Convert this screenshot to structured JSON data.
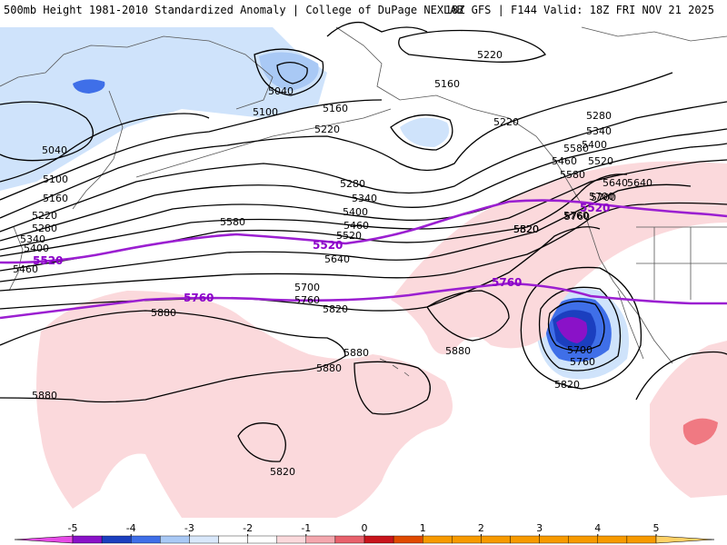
{
  "header": {
    "title_left": "500mb Height 1981-2010 Standardized Anomaly | College of DuPage NEXLAB",
    "title_right": "18Z GFS | F144 Valid: 18Z FRI NOV 21 2025"
  },
  "map": {
    "contour_labels": [
      {
        "text": "5220"
      },
      {
        "text": "5160"
      },
      {
        "text": "5220"
      },
      {
        "text": "5040"
      },
      {
        "text": "5100"
      },
      {
        "text": "5160"
      },
      {
        "text": "5220"
      },
      {
        "text": "5280"
      },
      {
        "text": "5340"
      },
      {
        "text": "5400"
      },
      {
        "text": "5460"
      },
      {
        "text": "5520"
      },
      {
        "text": "5580"
      },
      {
        "text": "5640"
      },
      {
        "text": "5700"
      },
      {
        "text": "5760"
      },
      {
        "text": "5820"
      },
      {
        "text": "5880"
      },
      {
        "text": "5040"
      },
      {
        "text": "5100"
      },
      {
        "text": "5160"
      },
      {
        "text": "5220"
      },
      {
        "text": "5280"
      },
      {
        "text": "5340"
      },
      {
        "text": "5400"
      },
      {
        "text": "5460"
      },
      {
        "text": "5520"
      },
      {
        "text": "5580"
      },
      {
        "text": "5640"
      },
      {
        "text": "5700"
      },
      {
        "text": "5760"
      },
      {
        "text": "5820"
      },
      {
        "text": "5880"
      },
      {
        "text": "5880"
      },
      {
        "text": "5880"
      },
      {
        "text": "5880"
      },
      {
        "text": "5820"
      },
      {
        "text": "5700"
      },
      {
        "text": "5760"
      },
      {
        "text": "5820"
      },
      {
        "text": "5280"
      },
      {
        "text": "5340"
      },
      {
        "text": "5400"
      },
      {
        "text": "5460"
      },
      {
        "text": "5520"
      },
      {
        "text": "5580"
      },
      {
        "text": "5640"
      },
      {
        "text": "5700"
      },
      {
        "text": "5760"
      },
      {
        "text": "5820"
      }
    ],
    "key_contours": [
      {
        "text": "5520"
      },
      {
        "text": "5520"
      },
      {
        "text": "5520"
      },
      {
        "text": "5760"
      },
      {
        "text": "5760"
      }
    ],
    "key_colors": {
      "c5520": "#9b1fd1",
      "c5760": "#9b1fd1"
    }
  },
  "legend": {
    "ticks": [
      "-5",
      "-4",
      "-3",
      "-2",
      "-1",
      "0",
      "1",
      "2",
      "3",
      "4",
      "5"
    ],
    "colors": [
      "#e64be6",
      "#8a12c8",
      "#1b3fbf",
      "#3f6fe8",
      "#a9c9f5",
      "#d9e8fb",
      "#ffffff",
      "#ffffff",
      "#fbd9dc",
      "#f4a7ae",
      "#e8616c",
      "#c8141c",
      "#e04a00",
      "#f79a00",
      "#ffd166"
    ]
  }
}
